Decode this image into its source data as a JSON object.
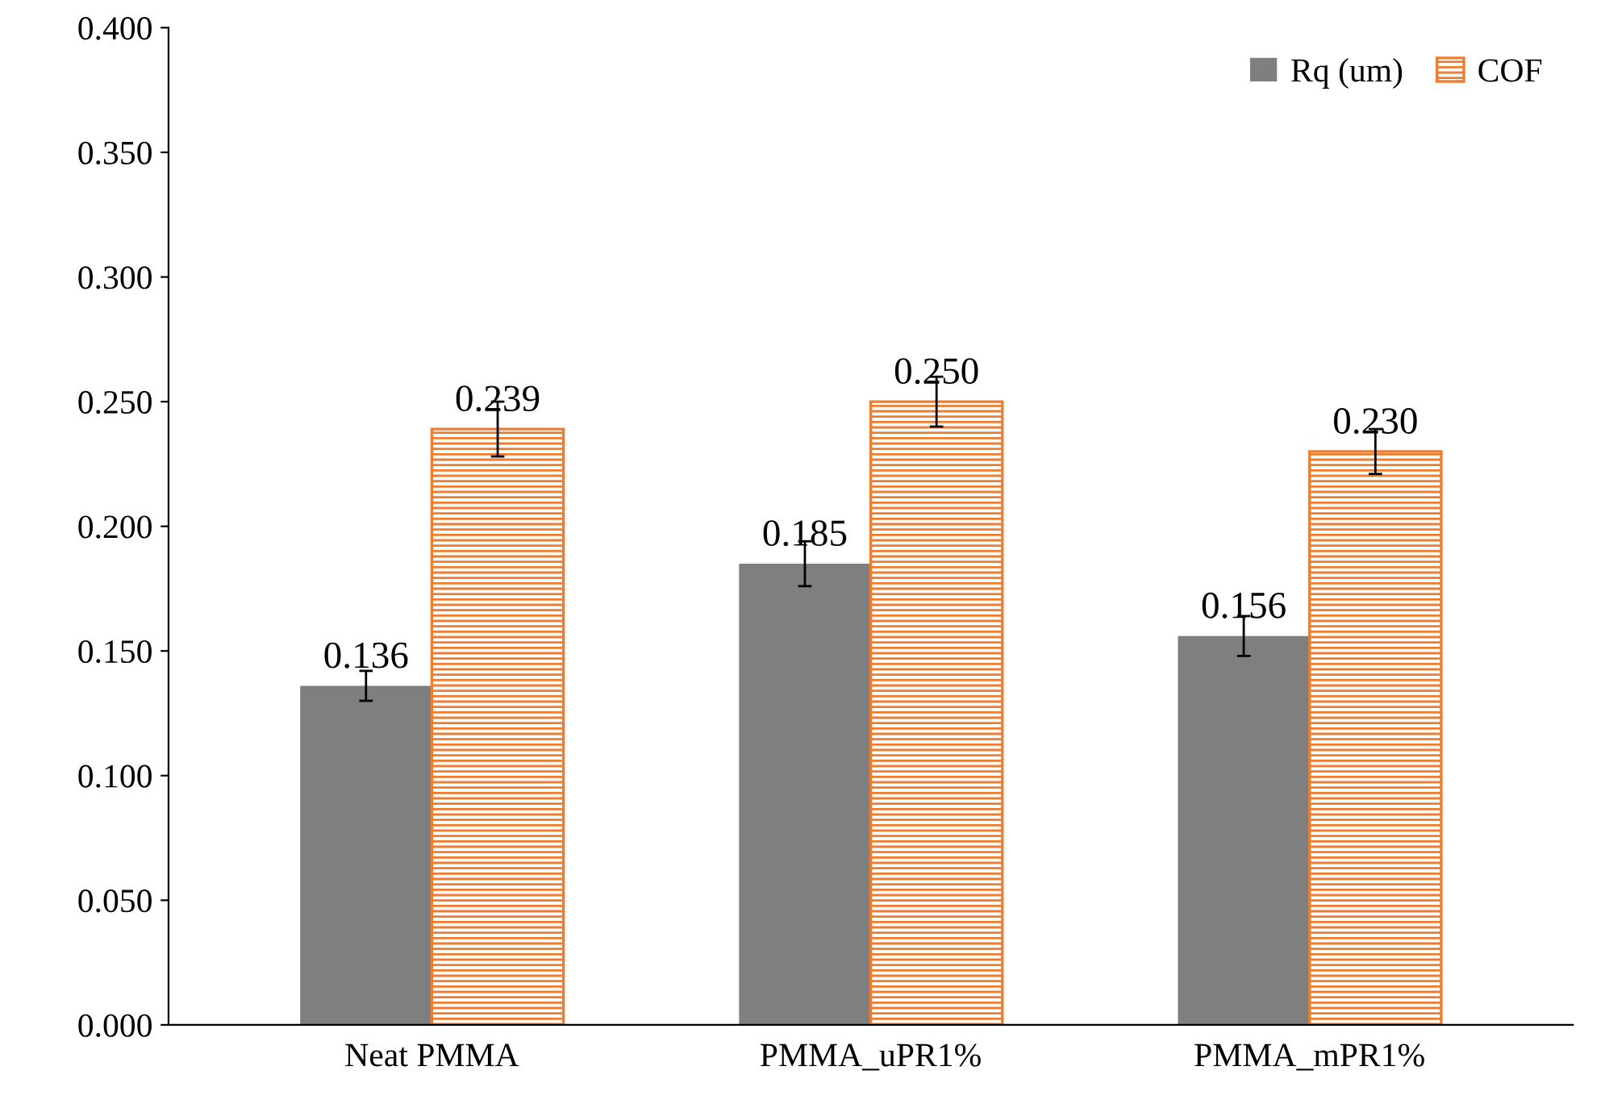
{
  "chart_data": {
    "type": "bar",
    "categories": [
      "Neat PMMA",
      "PMMA_uPR1%",
      "PMMA_mPR1%"
    ],
    "series": [
      {
        "name": "Rq (um)",
        "color": "#7f7f7f",
        "values": [
          0.136,
          0.185,
          0.156
        ],
        "errors": [
          0.006,
          0.009,
          0.008
        ],
        "value_labels": [
          "0.136",
          "0.185",
          "0.156"
        ]
      },
      {
        "name": "COF",
        "color": "#ed7d31",
        "values": [
          0.239,
          0.25,
          0.23
        ],
        "errors": [
          0.011,
          0.01,
          0.009
        ],
        "value_labels": [
          "0.239",
          "0.250",
          "0.230"
        ]
      }
    ],
    "ylim": [
      0,
      0.4
    ],
    "yticks": [
      {
        "value": 0,
        "label": "0.000"
      },
      {
        "value": 0.05,
        "label": "0.050"
      },
      {
        "value": 0.1,
        "label": "0.100"
      },
      {
        "value": 0.15,
        "label": "0.150"
      },
      {
        "value": 0.2,
        "label": "0.200"
      },
      {
        "value": 0.25,
        "label": "0.250"
      },
      {
        "value": 0.3,
        "label": "0.300"
      },
      {
        "value": 0.35,
        "label": "0.350"
      },
      {
        "value": 0.4,
        "label": "0.400"
      }
    ],
    "grid": false,
    "legend": "top right"
  }
}
